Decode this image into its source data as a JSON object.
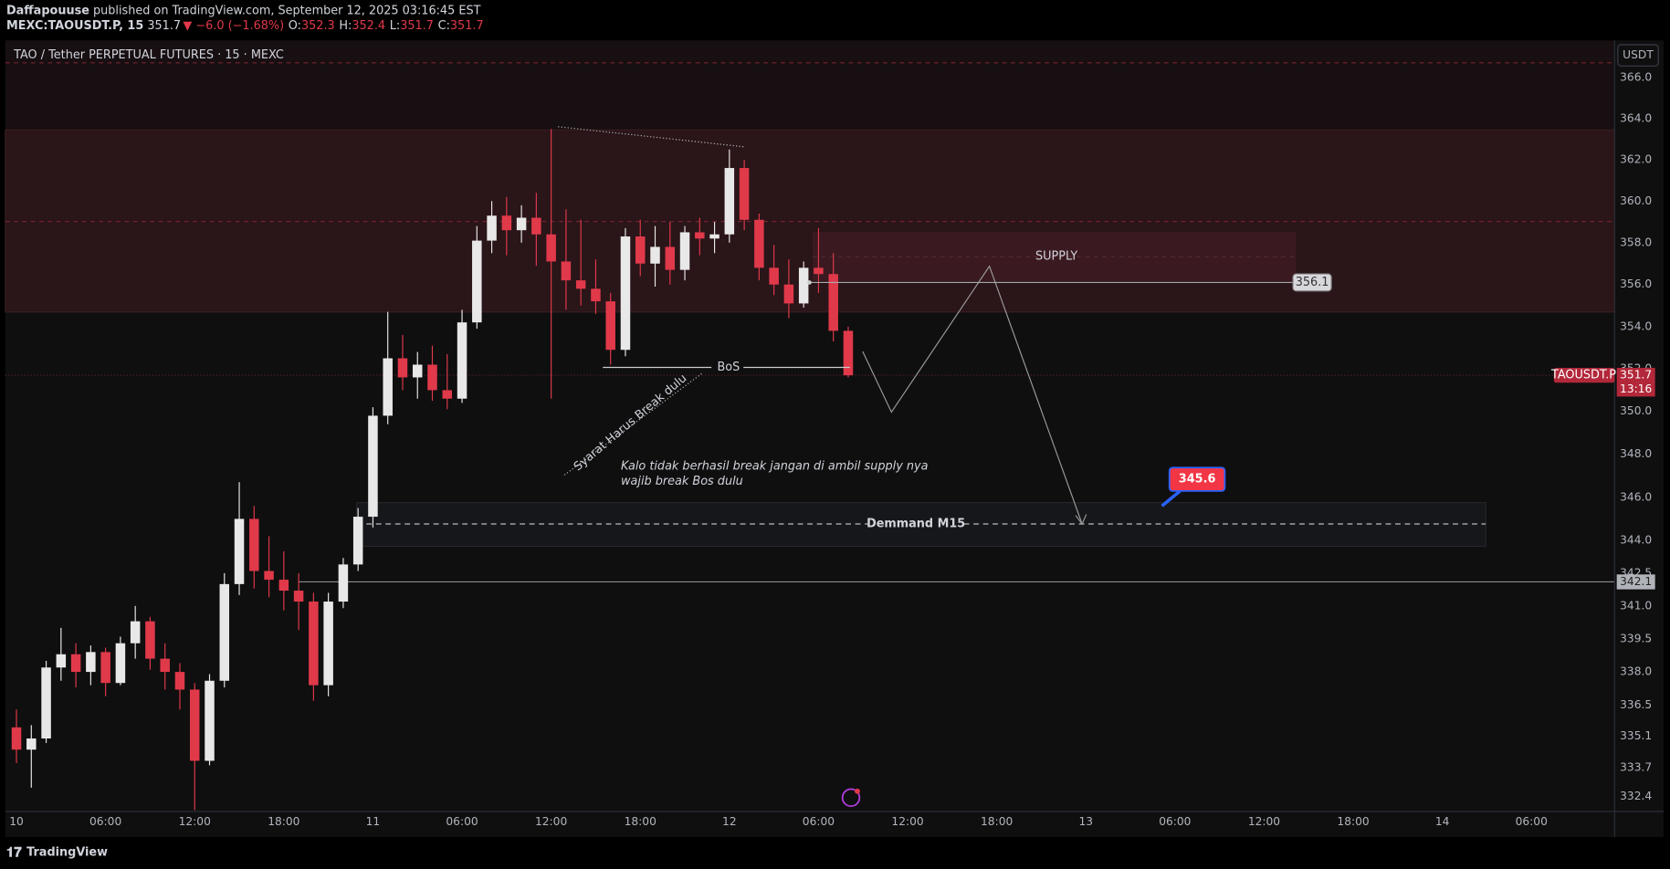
{
  "header": {
    "author": "Daffapouuse",
    "published": "published on TradingView.com, September 12, 2025 03:16:45 EST",
    "symbol": "MEXC:TAOUSDT.P, 15",
    "last": "351.7",
    "change": "▼ −6.0 (−1.68%)",
    "ohlc": [
      {
        "label": "O:",
        "value": "352.3"
      },
      {
        "label": "H:",
        "value": "352.4"
      },
      {
        "label": "L:",
        "value": "351.7"
      },
      {
        "label": "C:",
        "value": "351.7"
      }
    ]
  },
  "chart_data": {
    "type": "candlestick",
    "title": "TAO / Tether PERPETUAL FUTURES · 15 · MEXC",
    "currency": "USDT",
    "log_scale": true,
    "grid": false,
    "up_color": "#e8e8e8",
    "down_color": "#e0394a",
    "x": [
      0,
      1,
      2,
      3,
      4,
      5,
      6,
      7,
      8,
      9,
      10,
      11,
      12,
      13,
      14,
      15,
      16,
      17,
      18,
      19,
      20,
      21,
      22,
      23,
      24,
      25,
      26,
      27,
      28,
      29,
      30,
      31,
      32,
      33,
      34,
      35,
      36,
      37,
      38,
      39,
      40,
      41,
      42,
      43,
      44,
      45,
      46,
      47,
      48,
      49,
      50,
      51,
      52,
      53,
      54,
      55,
      56
    ],
    "open": [
      335.5,
      334.5,
      335.0,
      338.2,
      338.8,
      338.0,
      338.9,
      337.5,
      339.3,
      340.3,
      338.6,
      338.0,
      337.2,
      334.0,
      337.6,
      342.0,
      345.0,
      342.6,
      342.2,
      341.7,
      341.2,
      337.4,
      341.2,
      342.9,
      345.1,
      349.8,
      352.5,
      351.6,
      352.2,
      351.0,
      350.6,
      354.2,
      358.1,
      359.3,
      358.6,
      359.2,
      358.4,
      357.1,
      356.2,
      355.8,
      355.2,
      352.9,
      358.3,
      357.0,
      357.8,
      356.7,
      358.5,
      358.2,
      358.4,
      361.6,
      359.1,
      356.8,
      356.0,
      355.1,
      356.8,
      356.5,
      353.8
    ],
    "high": [
      336.3,
      335.6,
      338.5,
      340.0,
      339.3,
      339.2,
      339.1,
      339.6,
      341.0,
      340.5,
      339.3,
      338.4,
      337.5,
      337.9,
      342.5,
      346.7,
      345.6,
      344.2,
      343.5,
      342.5,
      341.6,
      341.6,
      343.2,
      345.5,
      350.2,
      354.7,
      353.6,
      352.8,
      353.1,
      352.7,
      354.8,
      358.8,
      360.0,
      360.2,
      359.8,
      360.4,
      363.5,
      359.6,
      359.1,
      357.2,
      355.6,
      358.7,
      359.1,
      358.8,
      359.0,
      358.8,
      359.2,
      359.0,
      362.5,
      362.0,
      359.4,
      357.9,
      357.2,
      357.1,
      358.7,
      357.5,
      354.0
    ],
    "low": [
      333.9,
      332.8,
      334.8,
      337.6,
      337.3,
      337.4,
      336.9,
      337.4,
      338.6,
      338.1,
      337.2,
      336.3,
      331.8,
      333.8,
      337.3,
      341.5,
      341.8,
      341.4,
      340.8,
      339.9,
      336.7,
      336.9,
      340.9,
      342.6,
      344.6,
      349.4,
      351.0,
      350.6,
      350.5,
      350.1,
      350.4,
      353.9,
      357.5,
      357.4,
      358.0,
      356.9,
      350.6,
      354.8,
      355.0,
      354.6,
      352.2,
      352.6,
      356.4,
      355.9,
      356.0,
      356.2,
      357.4,
      357.5,
      358.0,
      358.6,
      356.2,
      355.5,
      354.4,
      354.9,
      355.6,
      353.3,
      351.6
    ],
    "close": [
      334.5,
      335.0,
      338.2,
      338.8,
      338.0,
      338.9,
      337.5,
      339.3,
      340.3,
      338.6,
      338.0,
      337.2,
      334.0,
      337.6,
      342.0,
      345.0,
      342.6,
      342.2,
      341.7,
      341.2,
      337.4,
      341.2,
      342.9,
      345.1,
      349.8,
      352.5,
      351.6,
      352.2,
      351.0,
      350.6,
      354.2,
      358.1,
      359.3,
      358.6,
      359.2,
      358.4,
      357.1,
      356.2,
      355.8,
      355.2,
      352.9,
      358.3,
      357.0,
      357.8,
      356.7,
      358.5,
      358.2,
      358.4,
      361.6,
      359.1,
      356.8,
      356.0,
      355.1,
      356.8,
      356.5,
      353.8,
      351.7
    ],
    "xlim": [
      -0.75,
      107.6
    ],
    "xticks": [
      {
        "value": 0,
        "label": "10"
      },
      {
        "value": 6,
        "label": "06:00"
      },
      {
        "value": 12,
        "label": "12:00"
      },
      {
        "value": 18,
        "label": "18:00"
      },
      {
        "value": 24,
        "label": "11"
      },
      {
        "value": 30,
        "label": "06:00"
      },
      {
        "value": 36,
        "label": "12:00"
      },
      {
        "value": 42,
        "label": "18:00"
      },
      {
        "value": 48,
        "label": "12"
      },
      {
        "value": 54,
        "label": "06:00"
      },
      {
        "value": 60,
        "label": "12:00"
      },
      {
        "value": 66,
        "label": "18:00"
      },
      {
        "value": 72,
        "label": "13"
      },
      {
        "value": 78,
        "label": "06:00"
      },
      {
        "value": 84,
        "label": "12:00"
      },
      {
        "value": 90,
        "label": "18:00"
      },
      {
        "value": 96,
        "label": "14"
      },
      {
        "value": 102,
        "label": "06:00"
      }
    ],
    "ylim": [
      331.74,
      367.83
    ],
    "yticks": [
      332.4,
      333.7,
      335.1,
      336.5,
      {
        "value": 338,
        "label": "338.0"
      },
      339.5,
      {
        "value": 341,
        "label": "341.0"
      },
      342.5,
      {
        "value": 344,
        "label": "344.0"
      },
      {
        "value": 346,
        "label": "346.0"
      },
      {
        "value": 348,
        "label": "348.0"
      },
      {
        "value": 350,
        "label": "350.0"
      },
      {
        "value": 352,
        "label": "352.0"
      },
      {
        "value": 354,
        "label": "354.0"
      },
      {
        "value": 356,
        "label": "356.0"
      },
      {
        "value": 358,
        "label": "358.0"
      },
      {
        "value": 360,
        "label": "360.0"
      },
      {
        "value": 362,
        "label": "362.0"
      },
      {
        "value": 364,
        "label": "364.0"
      },
      {
        "value": 366,
        "label": "366.0"
      }
    ],
    "last_price": 351.7,
    "symbol_tag": "TAOUSDT.P",
    "countdown": "13:16",
    "annotations": {
      "supply": "SUPPLY",
      "bos": "BoS",
      "rule": "Syarat Harus Break dulu",
      "note": [
        "Kalo tidak berhasil break jangan di ambil supply nya",
        "wajib break Bos dulu"
      ],
      "demand": "Demmand M15",
      "marker": 356.1,
      "callout": 345.6,
      "level": 342.1
    }
  },
  "footer": {
    "brand": "TradingView"
  }
}
